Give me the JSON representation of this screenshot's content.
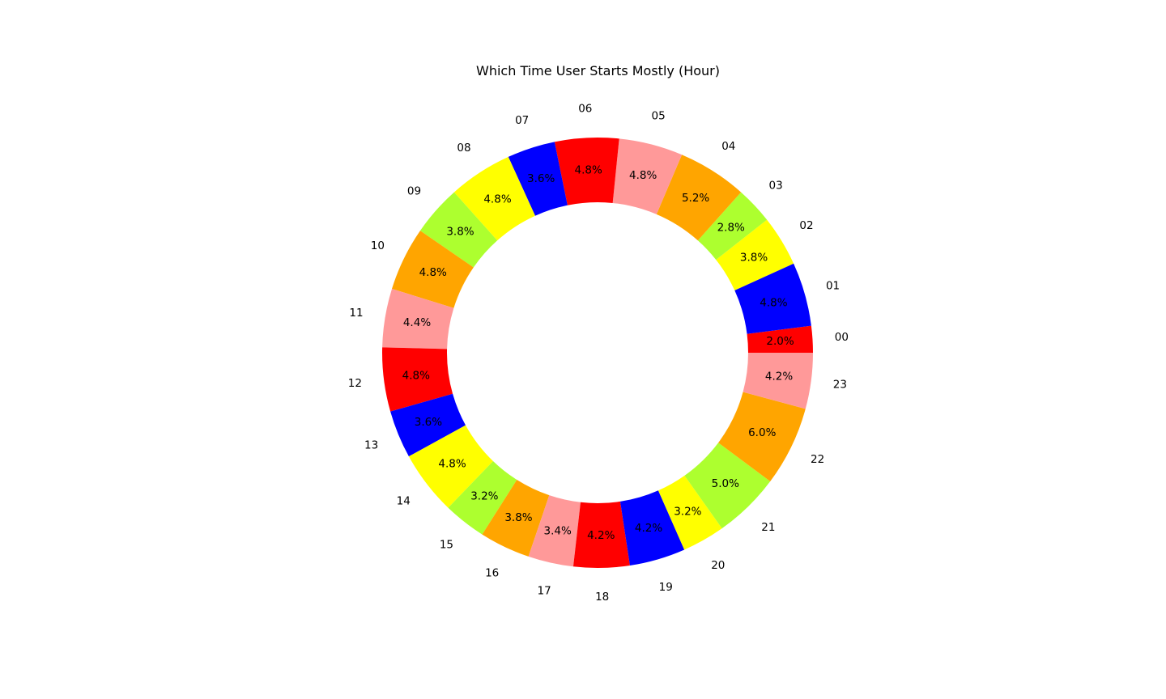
{
  "chart_data": {
    "type": "pie",
    "subtype": "donut",
    "title": "Which Time User Starts Mostly (Hour)",
    "start_angle_deg": 0,
    "direction": "counterclockwise",
    "colors": [
      "#ff0000",
      "#0000ff",
      "#ffff00",
      "#adff2f",
      "#ffa500",
      "#ff9999"
    ],
    "slices": [
      {
        "label": "00",
        "value": 2.0,
        "pct_label": "2.0%"
      },
      {
        "label": "01",
        "value": 4.8,
        "pct_label": "4.8%"
      },
      {
        "label": "02",
        "value": 3.8,
        "pct_label": "3.8%"
      },
      {
        "label": "03",
        "value": 2.8,
        "pct_label": "2.8%"
      },
      {
        "label": "04",
        "value": 5.2,
        "pct_label": "5.2%"
      },
      {
        "label": "05",
        "value": 4.8,
        "pct_label": "4.8%"
      },
      {
        "label": "06",
        "value": 4.8,
        "pct_label": "4.8%"
      },
      {
        "label": "07",
        "value": 3.6,
        "pct_label": "3.6%"
      },
      {
        "label": "08",
        "value": 4.8,
        "pct_label": "4.8%"
      },
      {
        "label": "09",
        "value": 3.8,
        "pct_label": "3.8%"
      },
      {
        "label": "10",
        "value": 4.8,
        "pct_label": "4.8%"
      },
      {
        "label": "11",
        "value": 4.4,
        "pct_label": "4.4%"
      },
      {
        "label": "12",
        "value": 4.8,
        "pct_label": "4.8%"
      },
      {
        "label": "13",
        "value": 3.6,
        "pct_label": "3.6%"
      },
      {
        "label": "14",
        "value": 4.8,
        "pct_label": "4.8%"
      },
      {
        "label": "15",
        "value": 3.2,
        "pct_label": "3.2%"
      },
      {
        "label": "16",
        "value": 3.8,
        "pct_label": "3.8%"
      },
      {
        "label": "17",
        "value": 3.4,
        "pct_label": "3.4%"
      },
      {
        "label": "18",
        "value": 4.2,
        "pct_label": "4.2%"
      },
      {
        "label": "19",
        "value": 4.2,
        "pct_label": "4.2%"
      },
      {
        "label": "20",
        "value": 3.2,
        "pct_label": "3.2%"
      },
      {
        "label": "21",
        "value": 5.0,
        "pct_label": "5.0%"
      },
      {
        "label": "22",
        "value": 6.0,
        "pct_label": "6.0%"
      },
      {
        "label": "23",
        "value": 4.2,
        "pct_label": "4.2%"
      }
    ]
  }
}
